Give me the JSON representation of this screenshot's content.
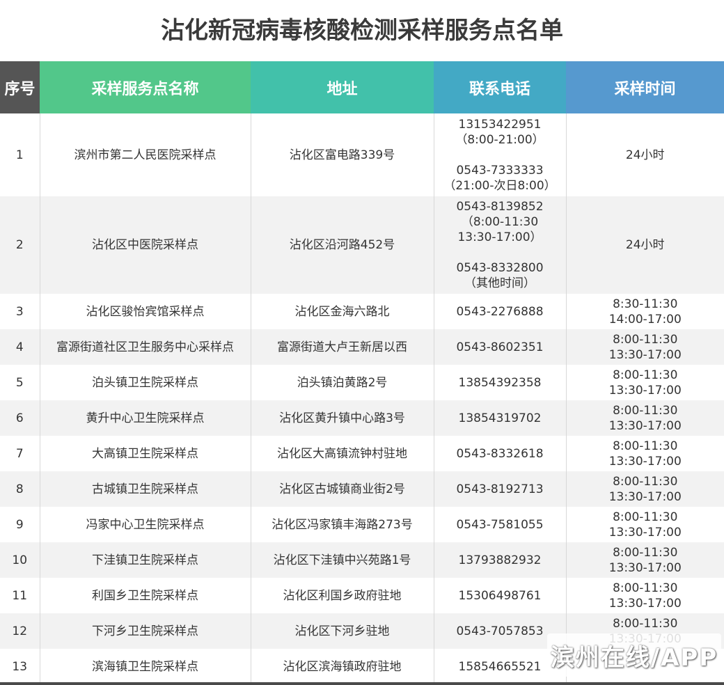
{
  "title": "沾化新冠病毒核酸检测采样服务点名单",
  "colors": {
    "index_header": "#555555",
    "name_header": "#52c78a",
    "address_header": "#42c1aa",
    "phone_header": "#43a9c5",
    "time_header": "#5699cf"
  },
  "headers": {
    "index": "序号",
    "name": "采样服务点名称",
    "address": "地址",
    "phone": "联系电话",
    "time": "采样时间"
  },
  "rows": [
    {
      "index": "1",
      "name": "滨州市第二人民医院采样点",
      "address": "沾化区富电路339号",
      "phone": "13153422951\n（8:00-21:00）\n\n0543-7333333\n（21:00-次日8:00）",
      "time": "24小时"
    },
    {
      "index": "2",
      "name": "沾化区中医院采样点",
      "address": "沾化区沿河路452号",
      "phone": "0543-8139852\n（8:00-11:30\n13:30-17:00）\n\n0543-8332800\n（其他时间）",
      "time": "24小时"
    },
    {
      "index": "3",
      "name": "沾化区骏怡宾馆采样点",
      "address": "沾化区金海六路北",
      "phone": "0543-2276888",
      "time": "8:30-11:30\n14:00-17:00"
    },
    {
      "index": "4",
      "name": "富源街道社区卫生服务中心采样点",
      "address": "富源街道大卢王新居以西",
      "phone": "0543-8602351",
      "time": "8:00-11:30\n13:30-17:00"
    },
    {
      "index": "5",
      "name": "泊头镇卫生院采样点",
      "address": "泊头镇泊黄路2号",
      "phone": "13854392358",
      "time": "8:00-11:30\n13:30-17:00"
    },
    {
      "index": "6",
      "name": "黄升中心卫生院采样点",
      "address": "沾化区黄升镇中心路3号",
      "phone": "13854319702",
      "time": "8:00-11:30\n13:30-17:00"
    },
    {
      "index": "7",
      "name": "大高镇卫生院采样点",
      "address": "沾化区大高镇流钟村驻地",
      "phone": "0543-8332618",
      "time": "8:00-11:30\n13:30-17:00"
    },
    {
      "index": "8",
      "name": "古城镇卫生院采样点",
      "address": "沾化区古城镇商业街2号",
      "phone": "0543-8192713",
      "time": "8:00-11:30\n13:30-17:00"
    },
    {
      "index": "9",
      "name": "冯家中心卫生院采样点",
      "address": "沾化区冯家镇丰海路273号",
      "phone": "0543-7581055",
      "time": "8:00-11:30\n13:30-17:00"
    },
    {
      "index": "10",
      "name": "下洼镇卫生院采样点",
      "address": "沾化区下洼镇中兴苑路1号",
      "phone": "13793882932",
      "time": "8:00-11:30\n13:30-17:00"
    },
    {
      "index": "11",
      "name": "利国乡卫生院采样点",
      "address": "沾化区利国乡政府驻地",
      "phone": "15306498761",
      "time": "8:00-11:30\n13:30-17:00"
    },
    {
      "index": "12",
      "name": "下河乡卫生院采样点",
      "address": "沾化区下河乡驻地",
      "phone": "0543-7057853",
      "time": "8:00-11:30\n13:30-17:00"
    },
    {
      "index": "13",
      "name": "滨海镇卫生院采样点",
      "address": "沾化区滨海镇政府驻地",
      "phone": "15854665521",
      "time": ""
    }
  ],
  "watermark": "滨州在线/APP"
}
